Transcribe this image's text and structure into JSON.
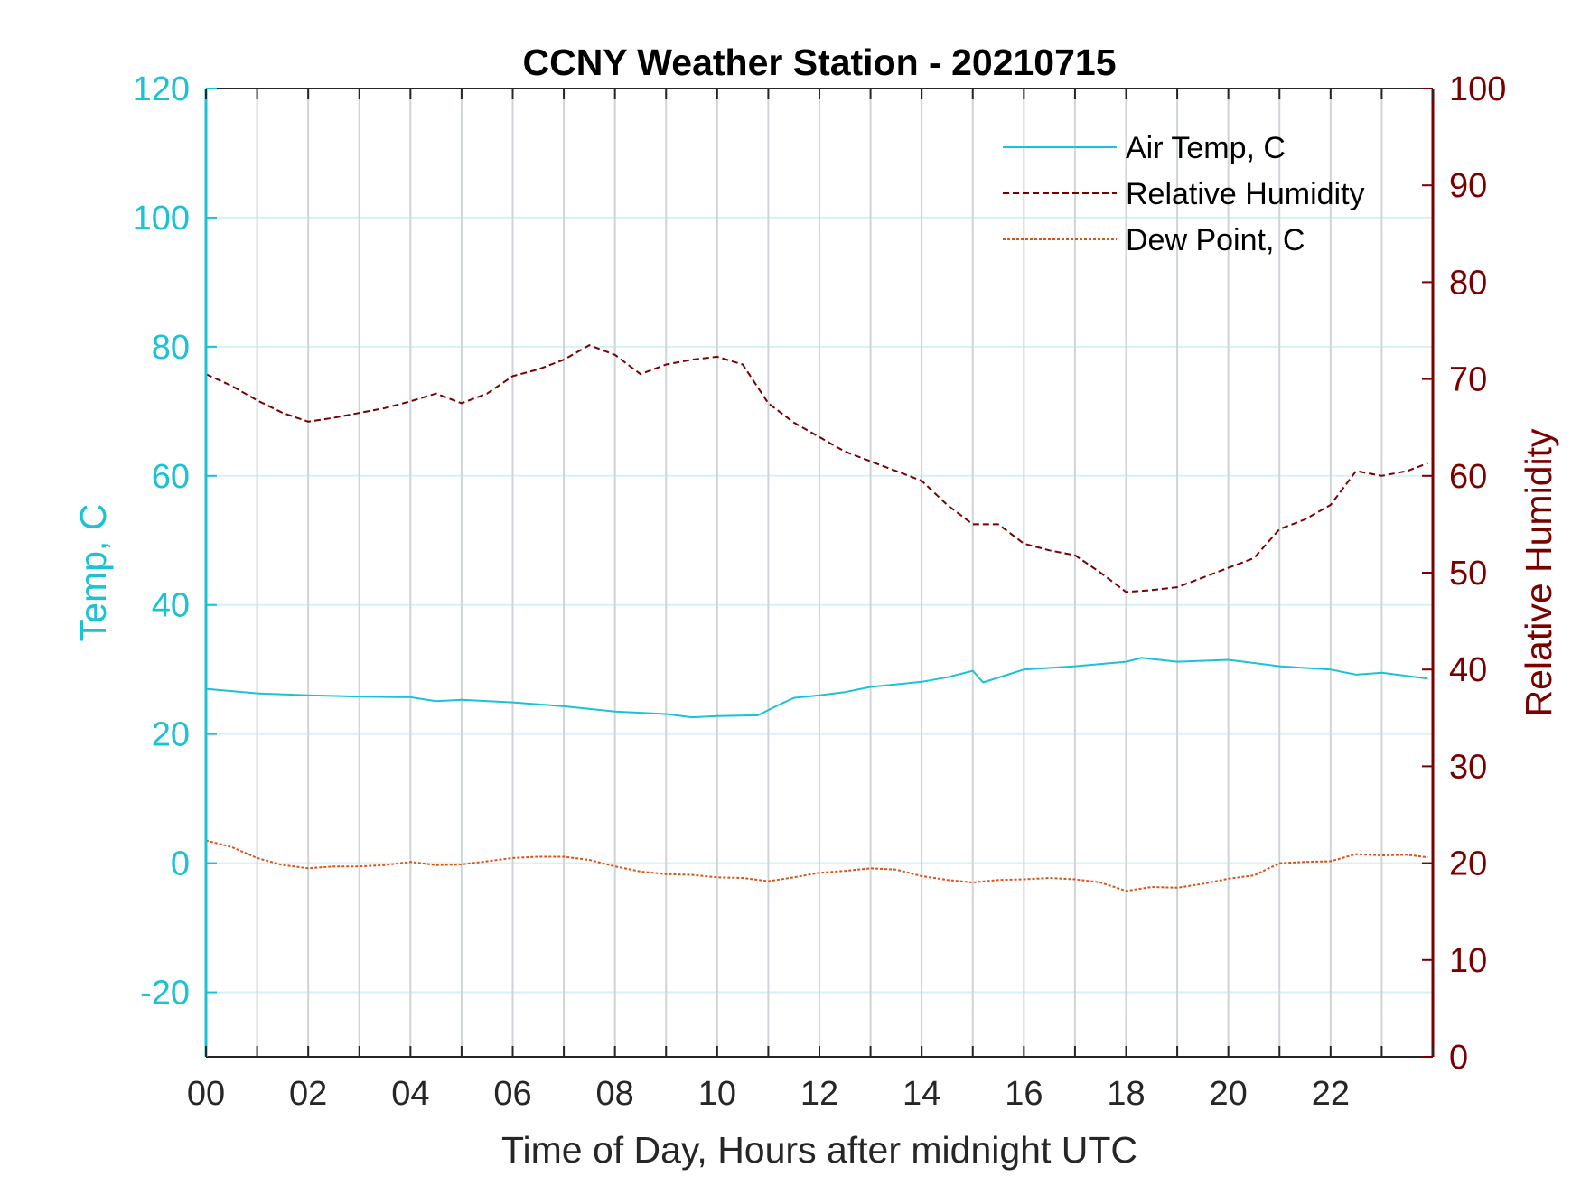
{
  "chart_data": {
    "type": "line",
    "title": "CCNY Weather Station - 20210715",
    "xlabel": "Time of Day, Hours after midnight UTC",
    "ylabel_left": "Temp, C",
    "ylabel_right": "Relative Humidity",
    "xlim": [
      0,
      24
    ],
    "ylim_left": [
      -30,
      120
    ],
    "ylim_right": [
      0,
      100
    ],
    "x_ticks": [
      0,
      2,
      4,
      6,
      8,
      10,
      12,
      14,
      16,
      18,
      20,
      22
    ],
    "x_tick_labels": [
      "00",
      "02",
      "04",
      "06",
      "08",
      "10",
      "12",
      "14",
      "16",
      "18",
      "20",
      "22"
    ],
    "y_left_ticks": [
      -20,
      0,
      20,
      40,
      60,
      80,
      100,
      120
    ],
    "y_right_ticks": [
      0,
      10,
      20,
      30,
      40,
      50,
      60,
      70,
      80,
      90,
      100
    ],
    "grid": "vertical lines every hour; horizontal lines at left-axis ticks",
    "legend_position": "top-right",
    "colors": {
      "left_axis": "#1ac2d6",
      "right_axis": "#7a0000",
      "air_temp": "#1ac2d6",
      "humidity": "#7a0000",
      "dew_point": "#d95319",
      "grid": "#cfd4d8",
      "axis_text": "#262626"
    },
    "series": [
      {
        "name": "Air Temp, C",
        "axis": "left",
        "style": "solid",
        "x": [
          0,
          1,
          2,
          3,
          4,
          4.5,
          5,
          6,
          7,
          8,
          9,
          9.5,
          10,
          10.8,
          11.2,
          11.5,
          12,
          12.5,
          13,
          13.5,
          14,
          14.5,
          15,
          15.2,
          16,
          17,
          18,
          18.3,
          19,
          20,
          21,
          22,
          22.5,
          23,
          23.9
        ],
        "y": [
          27,
          26.3,
          26,
          25.8,
          25.7,
          25.1,
          25.3,
          24.9,
          24.3,
          23.5,
          23.1,
          22.6,
          22.8,
          22.9,
          24.5,
          25.6,
          26,
          26.5,
          27.3,
          27.7,
          28.1,
          28.8,
          29.8,
          28,
          30,
          30.5,
          31.2,
          31.8,
          31.2,
          31.5,
          30.5,
          30,
          29.2,
          29.5,
          28.6
        ]
      },
      {
        "name": "Relative Humidity",
        "axis": "right",
        "style": "dashed",
        "x": [
          0,
          0.5,
          1,
          1.5,
          2,
          2.5,
          3,
          3.5,
          4,
          4.5,
          5,
          5.5,
          6,
          6.5,
          7,
          7.5,
          8,
          8.5,
          9,
          9.5,
          10,
          10.5,
          11,
          11.5,
          12,
          12.5,
          13,
          13.5,
          14,
          14.5,
          15,
          15.5,
          16,
          16.5,
          17,
          17.5,
          18,
          18.5,
          19,
          19.5,
          20,
          20.5,
          21,
          21.5,
          22,
          22.5,
          23,
          23.5,
          23.9
        ],
        "y": [
          70.5,
          69.3,
          67.8,
          66.5,
          65.6,
          66,
          66.5,
          67,
          67.7,
          68.5,
          67.5,
          68.5,
          70.3,
          71,
          72,
          73.5,
          72.5,
          70.5,
          71.5,
          72,
          72.3,
          71.5,
          67.5,
          65.5,
          64,
          62.5,
          61.5,
          60.5,
          59.5,
          57,
          55,
          55,
          53,
          52.3,
          51.8,
          50,
          48,
          48.2,
          48.5,
          49.5,
          50.5,
          51.5,
          54.5,
          55.5,
          57,
          60.5,
          60,
          60.5,
          61.3
        ]
      },
      {
        "name": "Dew Point, C",
        "axis": "left",
        "style": "dashed",
        "x": [
          0,
          0.5,
          1,
          1.5,
          2,
          2.5,
          3,
          3.5,
          4,
          4.5,
          5,
          5.5,
          6,
          6.5,
          7,
          7.5,
          8,
          8.5,
          9,
          9.5,
          10,
          10.5,
          11,
          11.5,
          12,
          12.5,
          13,
          13.5,
          14,
          14.5,
          15,
          15.5,
          16,
          16.5,
          17,
          17.5,
          18,
          18.5,
          19,
          19.5,
          20,
          20.5,
          21,
          21.5,
          22,
          22.5,
          23,
          23.5,
          23.9
        ],
        "y": [
          3.5,
          2.5,
          0.8,
          -0.3,
          -0.8,
          -0.5,
          -0.5,
          -0.3,
          0.2,
          -0.3,
          -0.2,
          0.3,
          0.8,
          1,
          1,
          0.5,
          -0.5,
          -1.3,
          -1.7,
          -1.8,
          -2.2,
          -2.3,
          -2.8,
          -2.2,
          -1.5,
          -1.2,
          -0.8,
          -1,
          -2,
          -2.6,
          -3,
          -2.6,
          -2.5,
          -2.3,
          -2.5,
          -3,
          -4.3,
          -3.7,
          -3.8,
          -3.2,
          -2.4,
          -1.9,
          0,
          0.2,
          0.3,
          1.4,
          1.2,
          1.3,
          0.9
        ]
      }
    ]
  }
}
